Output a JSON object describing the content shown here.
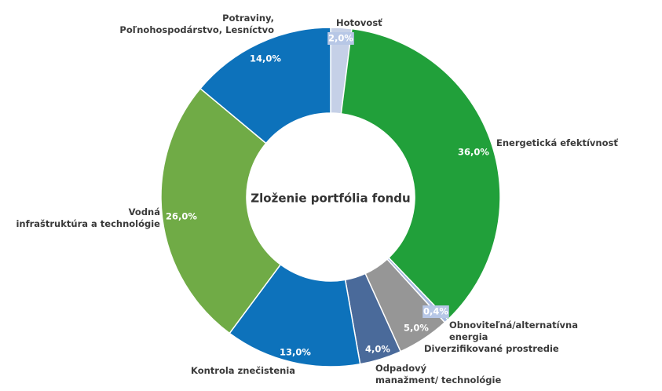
{
  "chart_data": {
    "type": "pie",
    "title": "Zloženie portfólia fondu",
    "legend": "none",
    "slices": [
      {
        "label": "Hotovosť",
        "value": 2.0,
        "display": "2,0%",
        "color": "#c5d0e7"
      },
      {
        "label": "Energetická efektívnosť",
        "value": 36.0,
        "display": "36,0%",
        "color": "#21a03a"
      },
      {
        "label": "Obnoviteľná/alternatívna energia",
        "value": 0.4,
        "display": "0,4%",
        "color": "#a7badf"
      },
      {
        "label": "Diverzifikované prostredie",
        "value": 5.0,
        "display": "5,0%",
        "color": "#969696"
      },
      {
        "label": "Odpadový manažment/ technológie",
        "value": 4.0,
        "display": "4,0%",
        "color": "#4a6a9a"
      },
      {
        "label": "Kontrola znečistenia",
        "value": 13.0,
        "display": "13,0%",
        "color": "#0d72bb"
      },
      {
        "label": "Vodná infraštruktúra a technológie",
        "value": 26.0,
        "display": "26,0%",
        "color": "#70ab46"
      },
      {
        "label": "Potraviny, Poľnohospodárstvo, Lesníctvo",
        "value": 14.0,
        "display": "14,0%",
        "color": "#0d72bb"
      }
    ]
  }
}
